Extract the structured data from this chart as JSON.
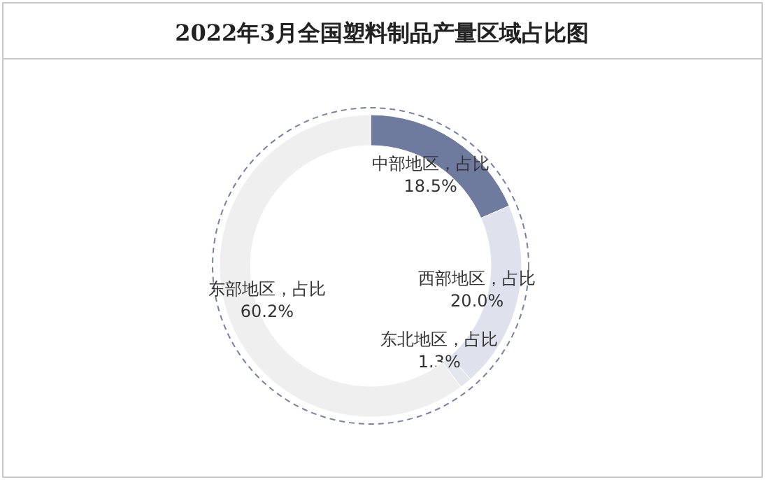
{
  "chart_data": {
    "type": "donut",
    "title": "2022年3月全国塑料制品产量区域占比图",
    "categories": [
      "中部地区，占比",
      "西部地区，占比",
      "东北地区，占比",
      "东部地区，占比"
    ],
    "values": [
      18.5,
      20.0,
      1.3,
      60.2
    ],
    "value_labels": [
      "18.5%",
      "20.0%",
      "1.3%",
      "60.2%"
    ],
    "colors": [
      "#6f7a9f",
      "#dfe2ec",
      "#e4e6ee",
      "#efefef"
    ]
  }
}
